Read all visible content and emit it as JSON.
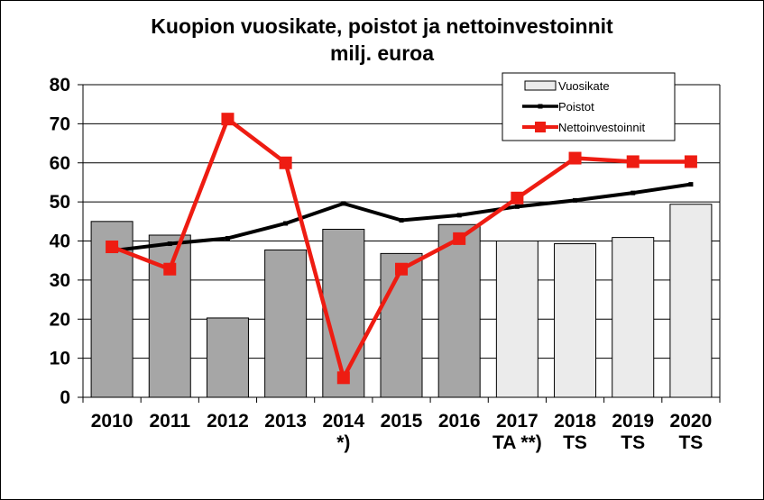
{
  "chart_data": {
    "type": "bar",
    "title": "Kuopion vuosikate, poistot ja nettoinvestoinnit",
    "subtitle": "milj. euroa",
    "categories": [
      [
        "2010"
      ],
      [
        "2011"
      ],
      [
        "2012"
      ],
      [
        "2013"
      ],
      [
        "2014",
        "*)"
      ],
      [
        "2015"
      ],
      [
        "2016"
      ],
      [
        "2017",
        "TA **)"
      ],
      [
        "2018",
        "TS"
      ],
      [
        "2019",
        "TS"
      ],
      [
        "2020",
        "TS"
      ]
    ],
    "ylim": [
      0,
      80
    ],
    "yticks": [
      0,
      10,
      20,
      30,
      40,
      50,
      60,
      70,
      80
    ],
    "grid": true,
    "legend_position": "top-right",
    "series": [
      {
        "name": "Vuosikate",
        "kind": "bar",
        "values": [
          45,
          41.5,
          20.3,
          37.7,
          43,
          36.8,
          44.2,
          40,
          39.3,
          40.9,
          49.4
        ],
        "colors": [
          "#a6a6a6",
          "#a6a6a6",
          "#a6a6a6",
          "#a6a6a6",
          "#a6a6a6",
          "#a6a6a6",
          "#a6a6a6",
          "#ebebeb",
          "#ebebeb",
          "#ebebeb",
          "#ebebeb"
        ],
        "legend_color": "#ebebeb"
      },
      {
        "name": "Poistot",
        "kind": "line",
        "color": "#000000",
        "values": [
          37.5,
          39.3,
          40.7,
          44.5,
          49.6,
          45.3,
          46.6,
          48.8,
          50.4,
          52.3,
          54.5
        ]
      },
      {
        "name": "Nettoinvestoinnit",
        "kind": "line",
        "color": "#ee1c12",
        "values": [
          38.5,
          32.8,
          71.2,
          60,
          5,
          32.8,
          40.6,
          51,
          61.2,
          60.3,
          60.3
        ]
      }
    ]
  }
}
